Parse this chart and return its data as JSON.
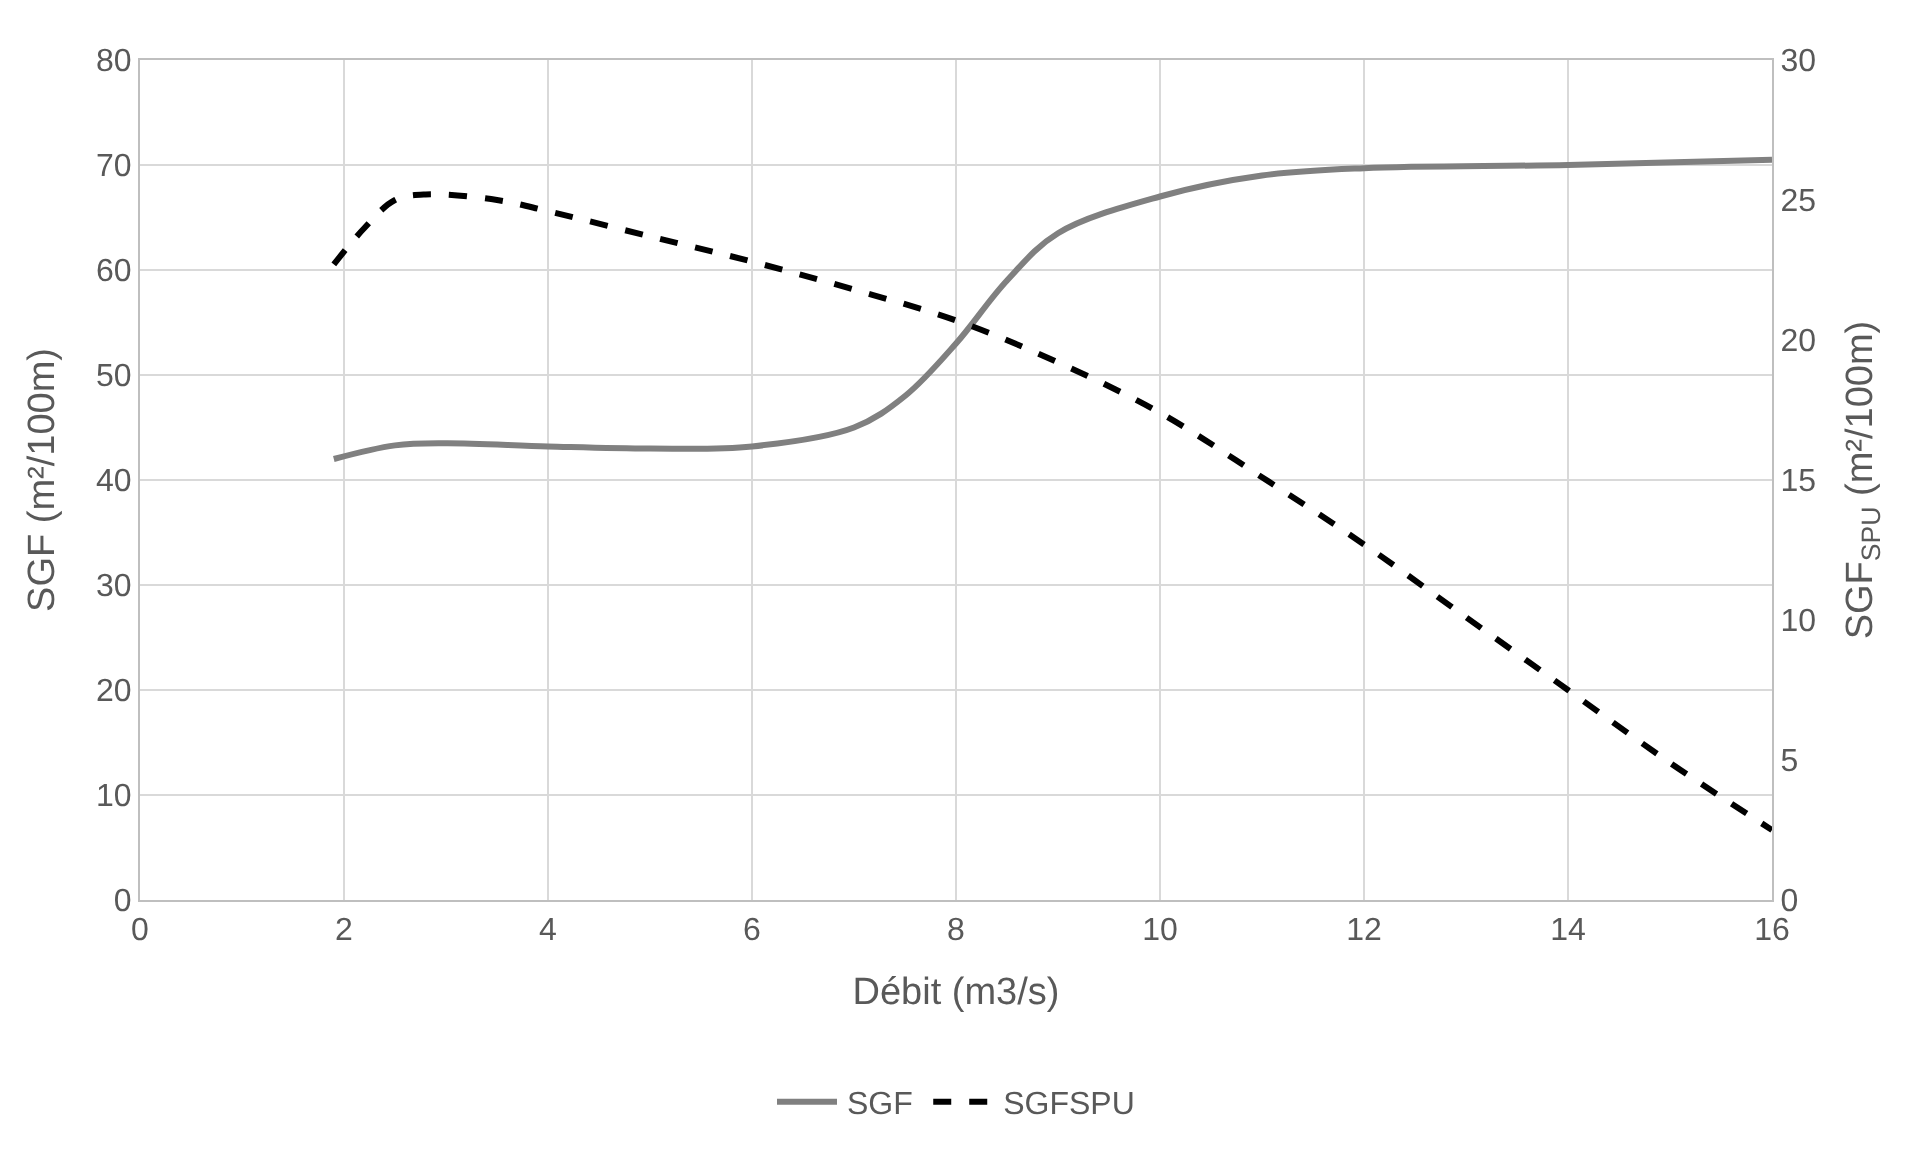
{
  "chart_data": {
    "type": "line",
    "xlabel": "Débit (m3/s)",
    "ylabel": "SGF (m²/100m)",
    "y2label": "SGF$_{SPU}$ (m²/100m)",
    "xlim": [
      0,
      16
    ],
    "xticks": [
      0,
      2,
      4,
      6,
      8,
      10,
      12,
      14,
      16
    ],
    "ylim": [
      0,
      80
    ],
    "yticks": [
      0,
      10,
      20,
      30,
      40,
      50,
      60,
      70,
      80
    ],
    "y2lim": [
      0,
      30
    ],
    "y2ticks": [
      0,
      5,
      10,
      15,
      20,
      25,
      30
    ],
    "grid": true,
    "legend": "bottom",
    "marker": "none",
    "series": [
      {
        "name": "SGF",
        "color": "#808080",
        "line_style": "solid",
        "x": [
          1.9,
          2.5,
          3,
          4,
          5,
          6,
          7,
          7.5,
          8,
          8.5,
          9,
          10,
          11,
          12,
          14,
          16
        ],
        "values": [
          42,
          43.3,
          43.5,
          43.2,
          43,
          43.2,
          45,
          48,
          53,
          59,
          63.5,
          67,
          69,
          69.7,
          70,
          70.5
        ]
      },
      {
        "name": "SGFSPU",
        "color": "#000000",
        "line_style": "dashed",
        "axis": "y2",
        "x": [
          1.9,
          2.2,
          2.5,
          2.8,
          3.5,
          4,
          5,
          6,
          7,
          8,
          9,
          10,
          11,
          12,
          13,
          14,
          15,
          16
        ],
        "values": [
          22.7,
          24,
          25,
          25.2,
          25,
          24.6,
          23.7,
          22.8,
          21.8,
          20.7,
          19.2,
          17.4,
          15.1,
          12.7,
          10.1,
          7.5,
          4.9,
          2.5
        ]
      }
    ]
  }
}
